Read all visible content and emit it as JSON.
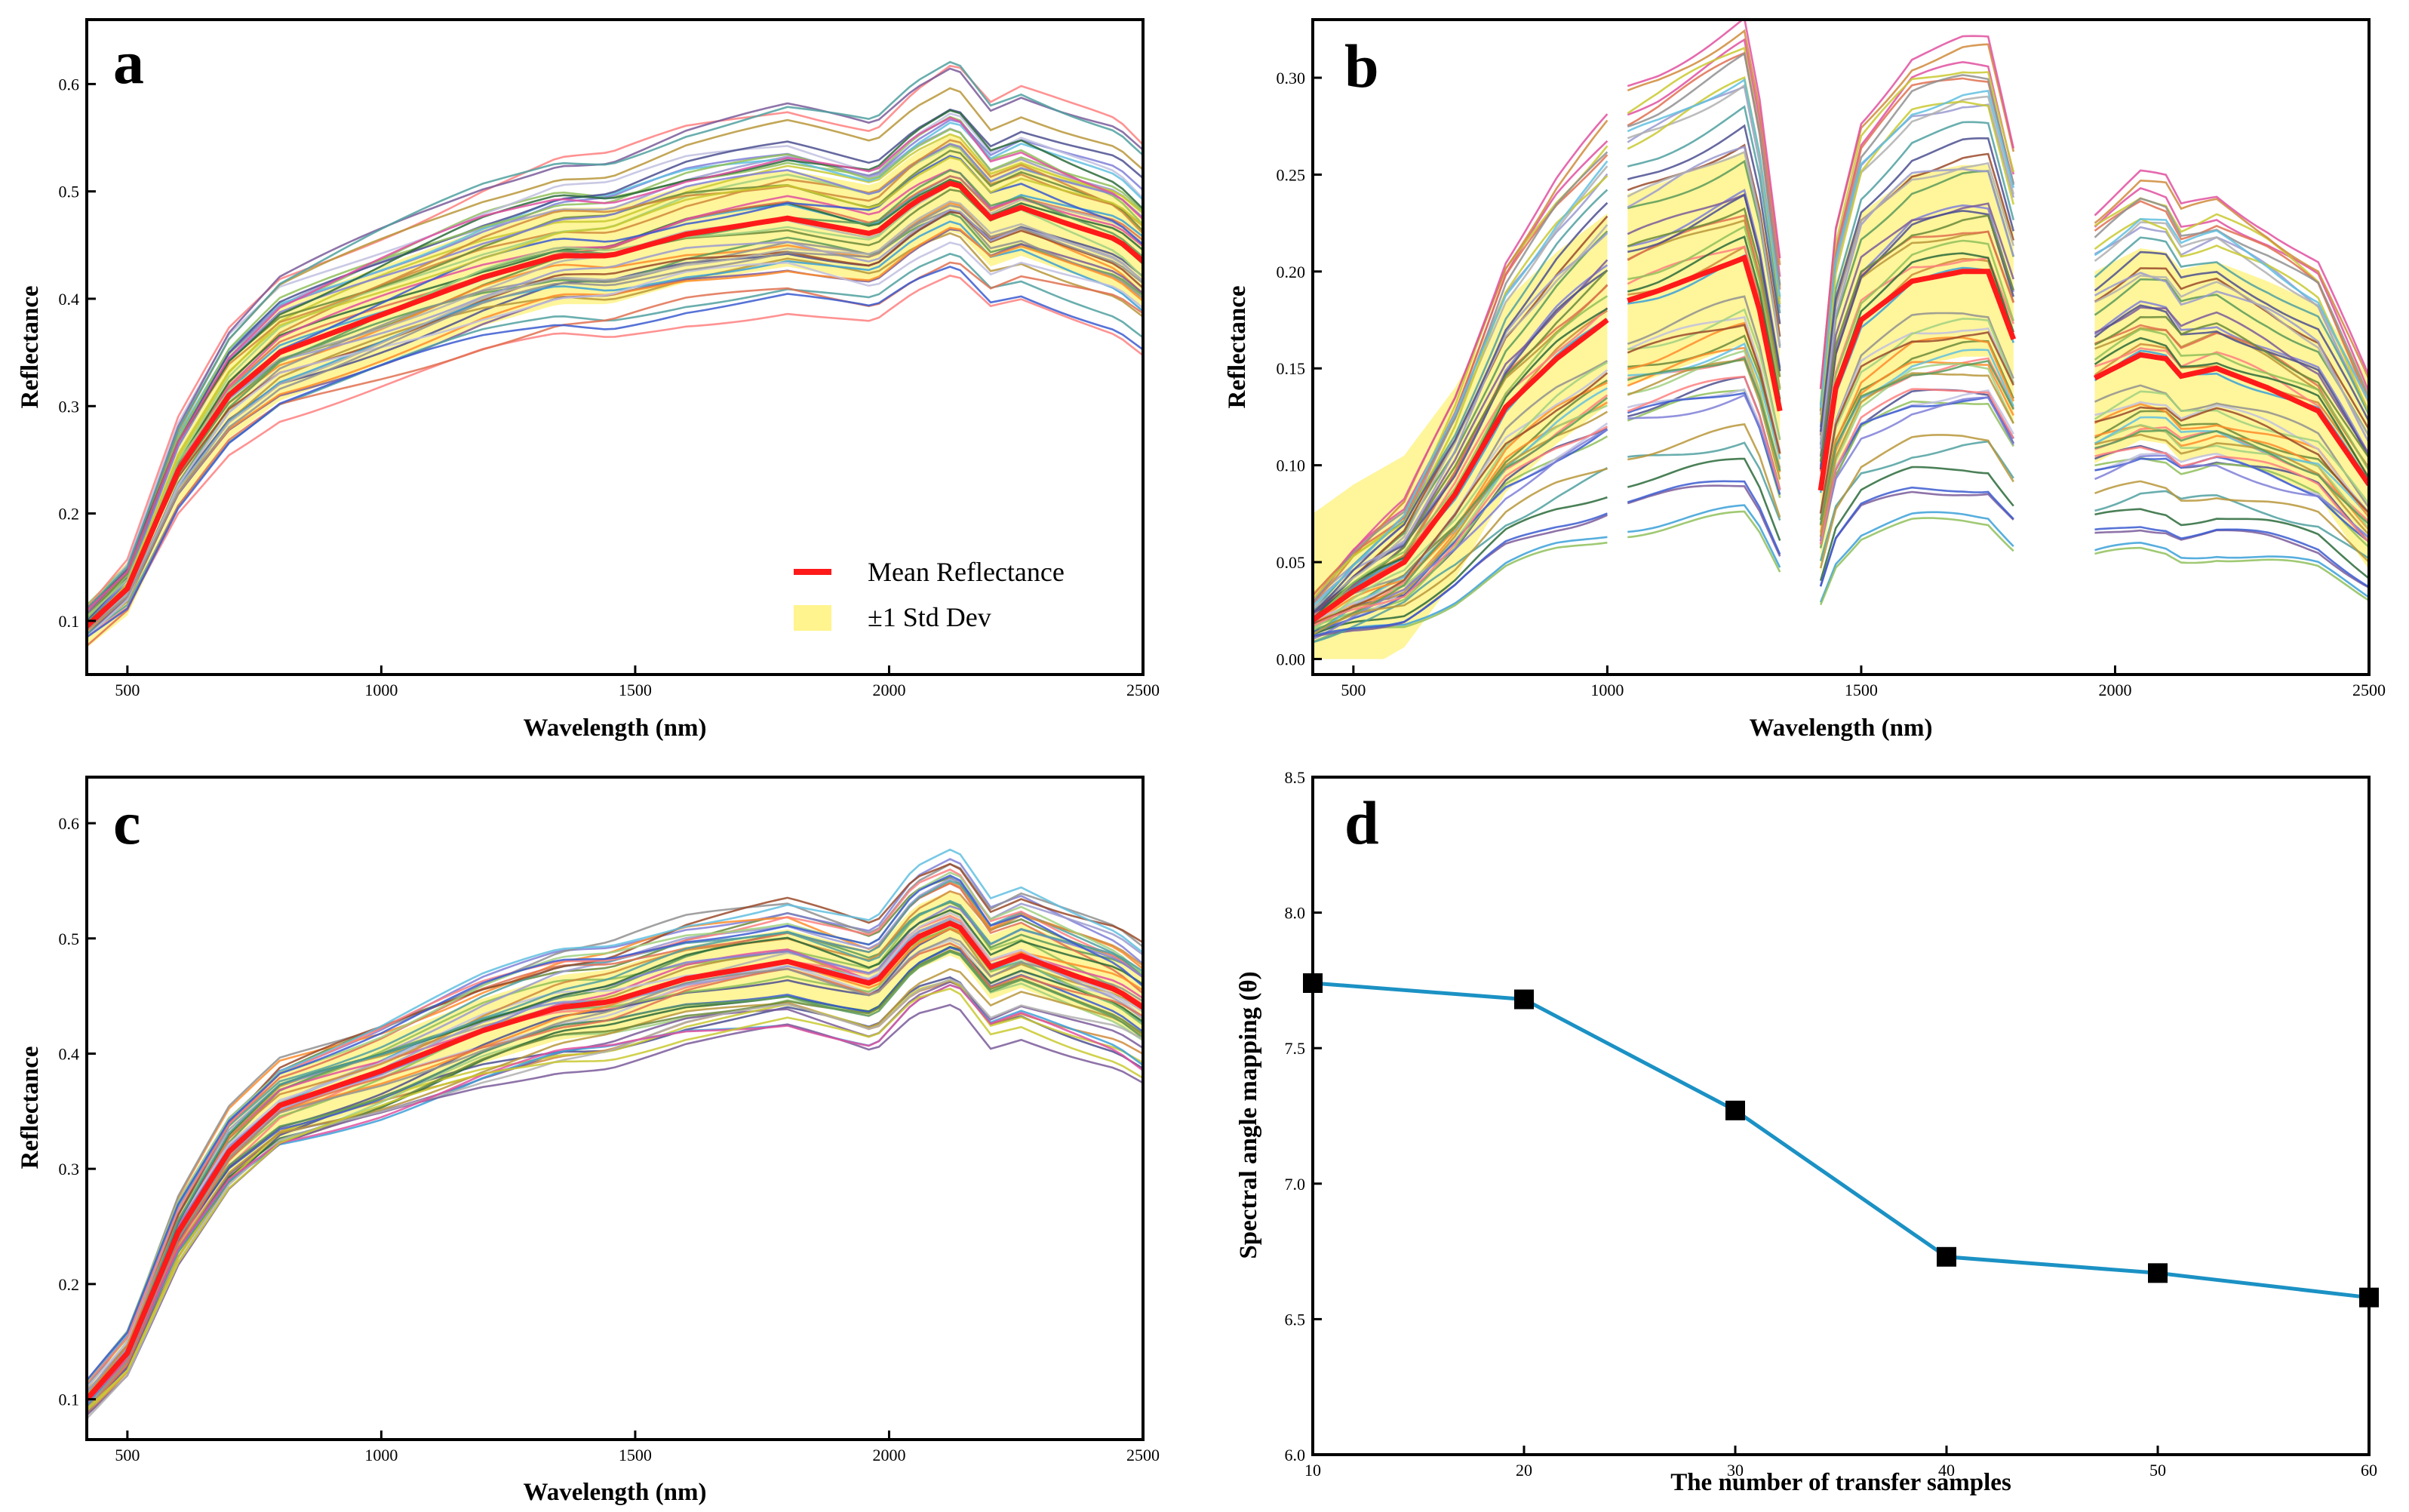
{
  "chart_data": [
    {
      "panel": "a",
      "type": "line",
      "xlabel": "Wavelength (nm)",
      "ylabel": "Reflectance",
      "xlim": [
        420,
        2500
      ],
      "ylim": [
        0.05,
        0.66
      ],
      "xticks": [
        "500",
        "1000",
        "1500",
        "2000",
        "2500"
      ],
      "yticks": [
        "0.1",
        "0.2",
        "0.3",
        "0.4",
        "0.5",
        "0.6"
      ],
      "legend": {
        "position": "lower-right",
        "mean_label": "Mean Reflectance",
        "std_label": "±1 Std Dev"
      },
      "mean_series": {
        "name": "Mean Reflectance",
        "x": [
          420,
          500,
          600,
          700,
          800,
          1000,
          1200,
          1350,
          1450,
          1600,
          1800,
          1970,
          2050,
          2130,
          2200,
          2260,
          2350,
          2450,
          2500
        ],
        "values": [
          0.095,
          0.13,
          0.24,
          0.31,
          0.35,
          0.385,
          0.42,
          0.44,
          0.44,
          0.46,
          0.475,
          0.46,
          0.49,
          0.51,
          0.475,
          0.485,
          0.47,
          0.455,
          0.435
        ],
        "std": [
          0.02,
          0.025,
          0.035,
          0.04,
          0.045,
          0.045,
          0.045,
          0.045,
          0.045,
          0.045,
          0.045,
          0.045,
          0.045,
          0.045,
          0.045,
          0.045,
          0.045,
          0.045,
          0.045
        ]
      },
      "sample_count": 46
    },
    {
      "panel": "b",
      "type": "line",
      "xlabel": "Wavelength (nm)",
      "ylabel": "Reflectance",
      "xlim": [
        420,
        2500
      ],
      "ylim": [
        -0.008,
        0.33
      ],
      "xticks": [
        "500",
        "1000",
        "1500",
        "2000",
        "2500"
      ],
      "yticks": [
        "0.00",
        "0.05",
        "0.10",
        "0.15",
        "0.20",
        "0.25",
        "0.30"
      ],
      "segments": [
        {
          "x": [
            420,
            500,
            600,
            700,
            800,
            900,
            1000
          ],
          "mean": [
            0.02,
            0.035,
            0.05,
            0.085,
            0.13,
            0.155,
            0.175
          ]
        },
        {
          "x": [
            1040,
            1100,
            1200,
            1270,
            1300,
            1340
          ],
          "mean": [
            0.185,
            0.19,
            0.2,
            0.207,
            0.18,
            0.128
          ]
        },
        {
          "x": [
            1420,
            1450,
            1500,
            1600,
            1700,
            1750,
            1800
          ],
          "mean": [
            0.087,
            0.14,
            0.175,
            0.195,
            0.2,
            0.2,
            0.165
          ]
        },
        {
          "x": [
            1960,
            2050,
            2100,
            2130,
            2200,
            2300,
            2400,
            2500
          ],
          "mean": [
            0.145,
            0.157,
            0.155,
            0.146,
            0.15,
            0.14,
            0.128,
            0.09
          ]
        }
      ],
      "std": 0.055,
      "sample_count": 52
    },
    {
      "panel": "c",
      "type": "line",
      "xlabel": "Wavelength (nm)",
      "ylabel": "Reflectance",
      "xlim": [
        420,
        2500
      ],
      "ylim": [
        0.065,
        0.64
      ],
      "xticks": [
        "500",
        "1000",
        "1500",
        "2000",
        "2500"
      ],
      "yticks": [
        "0.1",
        "0.2",
        "0.3",
        "0.4",
        "0.5",
        "0.6"
      ],
      "mean_series": {
        "name": "Mean Reflectance",
        "x": [
          420,
          500,
          600,
          700,
          800,
          1000,
          1200,
          1350,
          1450,
          1600,
          1800,
          1970,
          2050,
          2130,
          2200,
          2260,
          2350,
          2450,
          2500
        ],
        "values": [
          0.1,
          0.14,
          0.245,
          0.315,
          0.355,
          0.385,
          0.42,
          0.44,
          0.445,
          0.465,
          0.48,
          0.46,
          0.5,
          0.515,
          0.475,
          0.485,
          0.47,
          0.455,
          0.44
        ],
        "std": [
          0.015,
          0.018,
          0.022,
          0.025,
          0.028,
          0.028,
          0.028,
          0.028,
          0.028,
          0.028,
          0.028,
          0.028,
          0.028,
          0.028,
          0.028,
          0.028,
          0.028,
          0.028,
          0.028
        ]
      },
      "sample_count": 46
    },
    {
      "panel": "d",
      "type": "line",
      "xlabel": "The number of transfer samples",
      "ylabel": "Spectral angle mapping (θ)",
      "xlim": [
        10,
        60
      ],
      "ylim": [
        6.0,
        8.5
      ],
      "xticks": [
        "10",
        "20",
        "30",
        "40",
        "50",
        "60"
      ],
      "yticks": [
        "6.0",
        "6.5",
        "7.0",
        "7.5",
        "8.0",
        "8.5"
      ],
      "x": [
        10,
        20,
        30,
        40,
        50,
        60
      ],
      "values": [
        7.74,
        7.68,
        7.27,
        6.73,
        6.67,
        6.58
      ],
      "line_color": "#1b91c4",
      "marker_color": "#000000"
    }
  ],
  "colors": {
    "mean": "#ff1a1a",
    "band": "#fff27a",
    "palette": [
      "#4b4f8f",
      "#8fbf5a",
      "#b8963a",
      "#ff7f7f",
      "#6a8a3a",
      "#7f7fd8",
      "#3aa0d8",
      "#ff8c2a",
      "#9a9ad0",
      "#c0c0e0",
      "#5a9a5a",
      "#d08a3a",
      "#a0d080",
      "#2a6a3a",
      "#e07050",
      "#7a5a9a",
      "#b0b0b0",
      "#50a0a0",
      "#e050a0",
      "#909090",
      "#c9c930",
      "#3a5ad0",
      "#9a4a2a",
      "#60c0e0"
    ]
  }
}
